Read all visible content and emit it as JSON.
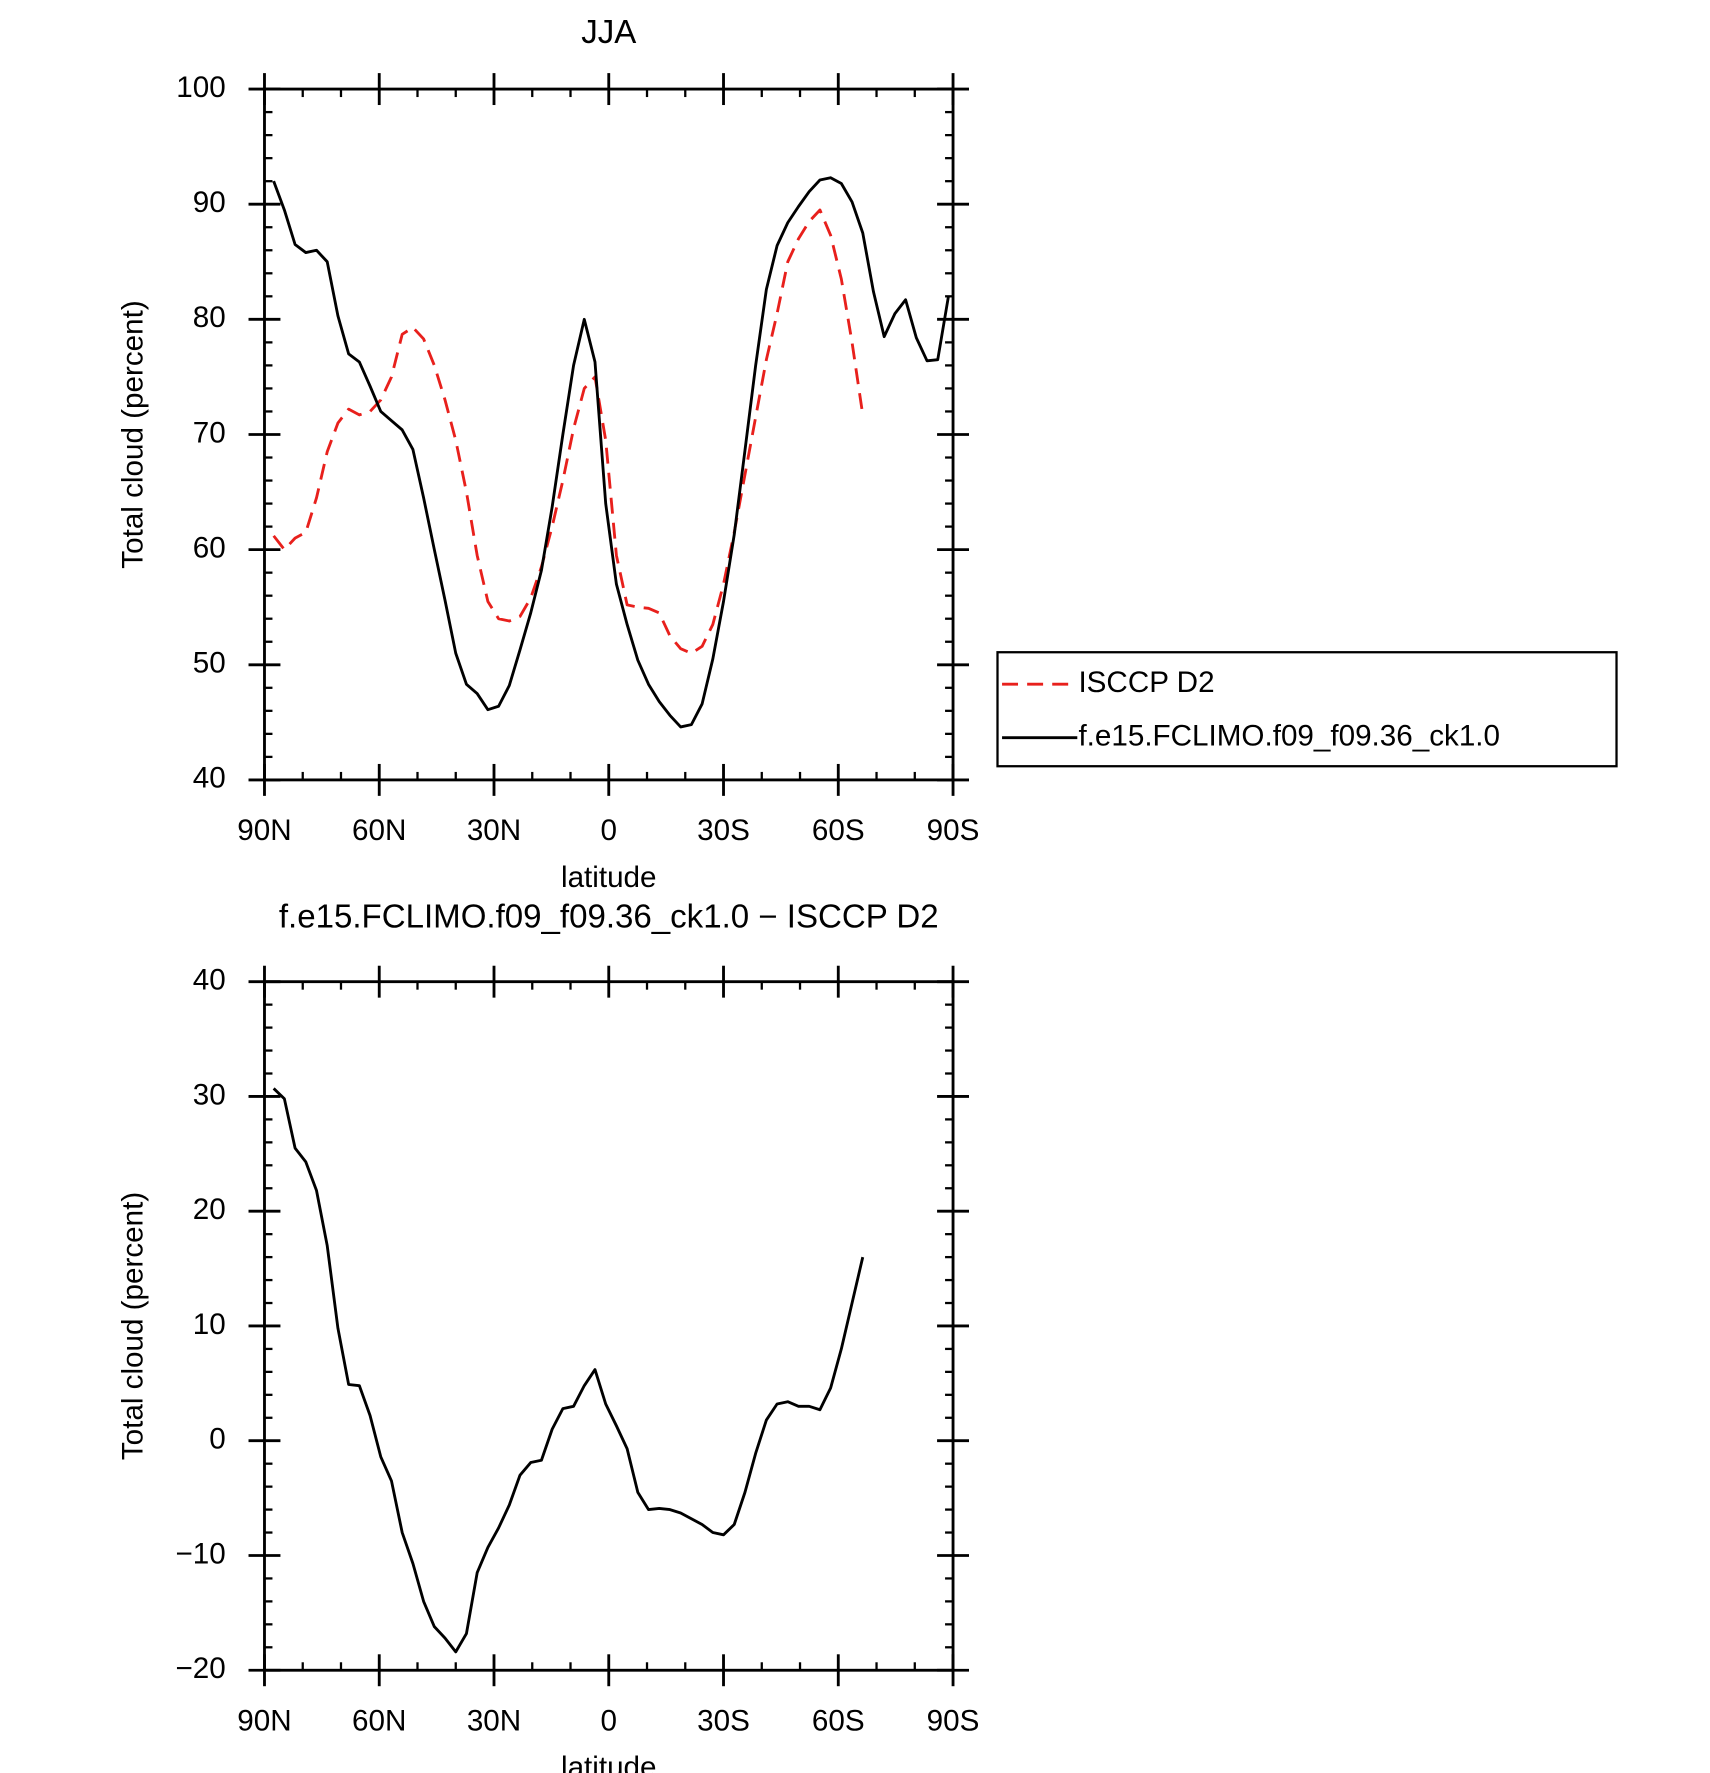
{
  "chart_data": [
    {
      "type": "line",
      "title": "JJA",
      "xlabel": "latitude",
      "ylabel": "Total cloud (percent)",
      "x": [
        87.6,
        84.8,
        82.0,
        79.2,
        76.4,
        73.6,
        70.8,
        68.0,
        65.2,
        62.4,
        59.6,
        56.8,
        54.0,
        51.2,
        48.4,
        45.6,
        42.8,
        40.0,
        37.2,
        34.4,
        31.6,
        28.8,
        26.0,
        23.2,
        20.4,
        17.6,
        14.8,
        12.0,
        9.2,
        6.4,
        3.6,
        0.8,
        -2.0,
        -4.8,
        -7.6,
        -10.4,
        -13.2,
        -16.0,
        -18.8,
        -21.6,
        -24.4,
        -27.2,
        -30.0,
        -32.8,
        -35.6,
        -38.4,
        -41.2,
        -44.0,
        -46.8,
        -49.6,
        -52.4,
        -55.2,
        -58.0,
        -60.8,
        -63.6,
        -66.4,
        -69.2,
        -72.0,
        -74.8,
        -77.6,
        -80.4,
        -83.2,
        -86.0,
        -88.8
      ],
      "series": [
        {
          "name": "ISCCP D2",
          "color": "#e8201c",
          "dash": true,
          "values": [
            61.2,
            60,
            61,
            61.5,
            64.5,
            68.5,
            71,
            72.2,
            71.7,
            72,
            73,
            75,
            78.7,
            79.3,
            78.3,
            76,
            73,
            69.5,
            65,
            59.5,
            55.5,
            54,
            53.8,
            54.2,
            55.8,
            58.5,
            62,
            66,
            70.5,
            74,
            75,
            69.5,
            59.5,
            55.2,
            55,
            54.9,
            54.5,
            52.5,
            51.4,
            51,
            51.6,
            53.5,
            57,
            61.5,
            66.5,
            71.5,
            76.5,
            80.5,
            85,
            87,
            88.5,
            89.5,
            87.3,
            83.5,
            78,
            71.7,
            null,
            null,
            null,
            null,
            null,
            null,
            null,
            null
          ]
        },
        {
          "name": "f.e15.FCLIMO.f09_f09.36_ck1.0",
          "color": "#000000",
          "dash": false,
          "values": [
            92,
            89.5,
            86.5,
            85.8,
            86,
            85,
            80.3,
            77,
            76.3,
            74.2,
            72,
            71.2,
            70.4,
            68.7,
            64.5,
            60,
            55.6,
            51,
            48.3,
            47.5,
            46.1,
            46.4,
            48.2,
            51.3,
            54.5,
            58.2,
            63.7,
            70,
            76,
            80,
            76.3,
            64,
            57,
            53.5,
            50.4,
            48.3,
            46.8,
            45.6,
            44.6,
            44.8,
            46.6,
            50.5,
            55.5,
            61.3,
            68.6,
            76,
            82.6,
            86.4,
            88.4,
            89.8,
            91.1,
            92.1,
            92.3,
            91.8,
            90.2,
            87.5,
            82.4,
            78.5,
            80.5,
            81.7,
            78.4,
            76.4,
            76.5,
            82
          ]
        }
      ],
      "xlim": [
        90,
        -90
      ],
      "xticks": [
        {
          "value": 90,
          "label": "90N"
        },
        {
          "value": 60,
          "label": "60N"
        },
        {
          "value": 30,
          "label": "30N"
        },
        0,
        {
          "value": -30,
          "label": "30S"
        },
        {
          "value": -60,
          "label": "60S"
        },
        {
          "value": -90,
          "label": "90S"
        }
      ],
      "ylim": [
        40,
        100
      ],
      "yticks": [
        40,
        50,
        60,
        70,
        80,
        90,
        100
      ],
      "legend": "right"
    },
    {
      "type": "line",
      "title": "f.e15.FCLIMO.f09_f09.36_ck1.0 − ISCCP D2",
      "xlabel": "latitude",
      "ylabel": "Total cloud (percent)",
      "x": [
        87.6,
        84.8,
        82.0,
        79.2,
        76.4,
        73.6,
        70.8,
        68.0,
        65.2,
        62.4,
        59.6,
        56.8,
        54.0,
        51.2,
        48.4,
        45.6,
        42.8,
        40.0,
        37.2,
        34.4,
        31.6,
        28.8,
        26.0,
        23.2,
        20.4,
        17.6,
        14.8,
        12.0,
        9.2,
        6.4,
        3.6,
        0.8,
        -2.0,
        -4.8,
        -7.6,
        -10.4,
        -13.2,
        -16.0,
        -18.8,
        -21.6,
        -24.4,
        -27.2,
        -30.0,
        -32.8,
        -35.6,
        -38.4,
        -41.2,
        -44.0,
        -46.8,
        -49.6,
        -52.4,
        -55.2,
        -58.0,
        -60.8,
        -63.6,
        -66.4
      ],
      "series": [
        {
          "color": "#000000",
          "dash": false,
          "values": [
            30.7,
            29.8,
            25.5,
            24.3,
            21.8,
            17,
            9.8,
            4.9,
            4.8,
            2.2,
            -1.4,
            -3.5,
            -8,
            -10.7,
            -14,
            -16.2,
            -17.2,
            -18.4,
            -16.8,
            -11.5,
            -9.3,
            -7.6,
            -5.6,
            -3,
            -1.9,
            -1.7,
            1,
            2.8,
            3,
            4.8,
            6.2,
            3.2,
            1.3,
            -0.7,
            -4.5,
            -6,
            -5.9,
            -6,
            -6.3,
            -6.8,
            -7.3,
            -8,
            -8.2,
            -7.3,
            -4.5,
            -1.1,
            1.8,
            3.2,
            3.4,
            3,
            3,
            2.7,
            4.6,
            8,
            12,
            16
          ]
        }
      ],
      "xlim": [
        90,
        -90
      ],
      "xticks": [
        {
          "value": 90,
          "label": "90N"
        },
        {
          "value": 60,
          "label": "60N"
        },
        {
          "value": 30,
          "label": "30N"
        },
        0,
        {
          "value": -30,
          "label": "30S"
        },
        {
          "value": -60,
          "label": "60S"
        },
        {
          "value": -90,
          "label": "90S"
        }
      ],
      "ylim": [
        -20,
        40
      ],
      "yticks": [
        {
          "value": -20,
          "label": "−20"
        },
        {
          "value": -10,
          "label": "−10"
        },
        0,
        10,
        20,
        30,
        40
      ]
    }
  ]
}
